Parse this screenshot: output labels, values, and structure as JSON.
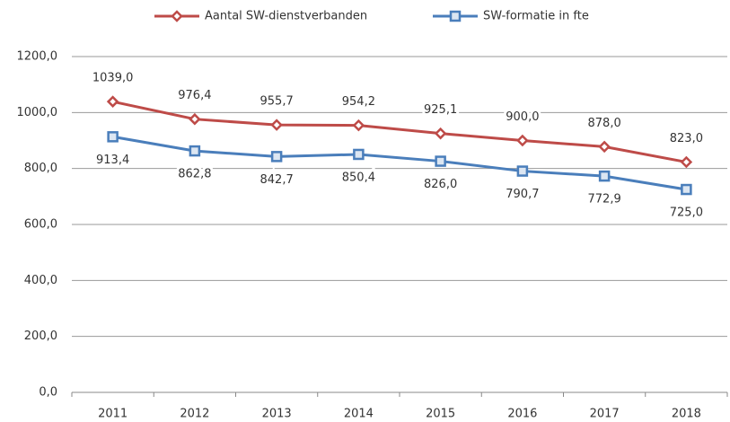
{
  "chart_data": {
    "type": "line",
    "categories": [
      "2011",
      "2012",
      "2013",
      "2014",
      "2015",
      "2016",
      "2017",
      "2018"
    ],
    "series": [
      {
        "name": "Aantal SW-dienstverbanden",
        "color": "#be4b48",
        "marker": "diamond",
        "values": [
          1039.0,
          976.4,
          955.7,
          954.2,
          925.1,
          900.0,
          878.0,
          823.0
        ],
        "value_labels": [
          "1039,0",
          "976,4",
          "955,7",
          "954,2",
          "925,1",
          "900,0",
          "878,0",
          "823,0"
        ]
      },
      {
        "name": "SW-formatie in fte",
        "color": "#4a7ebb",
        "marker": "square",
        "values": [
          913.4,
          862.8,
          842.7,
          850.4,
          826.0,
          790.7,
          772.9,
          725.0
        ],
        "value_labels": [
          "913,4",
          "862,8",
          "842,7",
          "850,4",
          "826,0",
          "790,7",
          "772,9",
          "725,0"
        ]
      }
    ],
    "ylim": [
      0,
      1200
    ],
    "yticks": [
      {
        "value": 0,
        "label": "0,0"
      },
      {
        "value": 200,
        "label": "200,0"
      },
      {
        "value": 400,
        "label": "400,0"
      },
      {
        "value": 600,
        "label": "600,0"
      },
      {
        "value": 800,
        "label": "800,0"
      },
      {
        "value": 1000,
        "label": "1000,0"
      },
      {
        "value": 1200,
        "label": "1200,0"
      }
    ],
    "grid": true,
    "legend": "top"
  }
}
